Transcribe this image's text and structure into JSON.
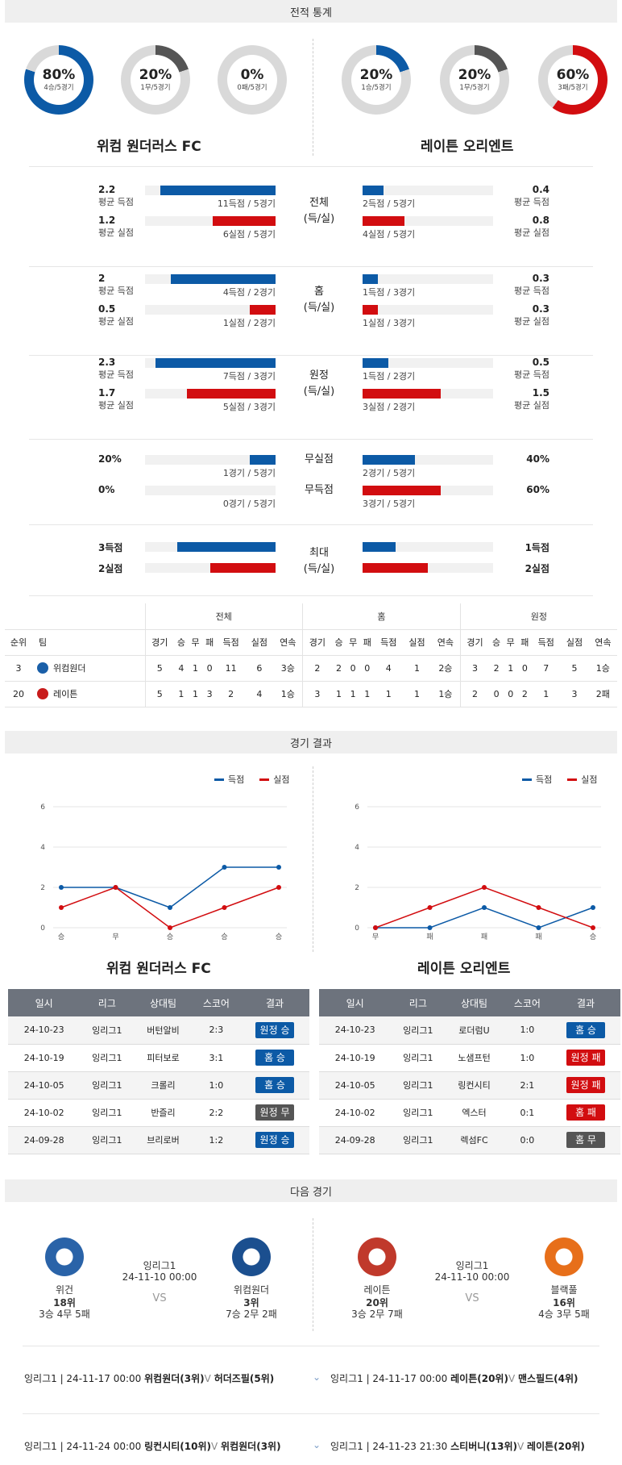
{
  "sections": {
    "stats": "전적 통계",
    "results": "경기 결과",
    "next": "다음 경기"
  },
  "donuts": [
    {
      "pct": "80%",
      "sub": "4승/5경기",
      "value": 0.8,
      "color": "#0c5aa6"
    },
    {
      "pct": "20%",
      "sub": "1무/5경기",
      "value": 0.2,
      "color": "#555555"
    },
    {
      "pct": "0%",
      "sub": "0패/5경기",
      "value": 0.0,
      "color": "#d20d10"
    },
    {
      "pct": "20%",
      "sub": "1승/5경기",
      "value": 0.2,
      "color": "#0c5aa6"
    },
    {
      "pct": "20%",
      "sub": "1무/5경기",
      "value": 0.2,
      "color": "#555555"
    },
    {
      "pct": "60%",
      "sub": "3패/5경기",
      "value": 0.6,
      "color": "#d20d10"
    }
  ],
  "teams": {
    "home": "위컴 원더러스 FC",
    "away": "레이튼 오리엔트"
  },
  "stat_groups": [
    {
      "center": [
        "전체",
        "(득/실)"
      ],
      "rows": [
        {
          "lv": "2.2",
          "ll": "평균 득점",
          "lcap": "11득점 / 5경기",
          "lw": 0.88,
          "rv": "0.4",
          "rl": "평균 득점",
          "rcap": "2득점 / 5경기",
          "rw": 0.16,
          "color": "blue"
        },
        {
          "lv": "1.2",
          "ll": "평균 실점",
          "lcap": "6실점 / 5경기",
          "lw": 0.48,
          "rv": "0.8",
          "rl": "평균 실점",
          "rcap": "4실점 / 5경기",
          "rw": 0.32,
          "color": "red"
        }
      ]
    },
    {
      "center": [
        "홈",
        "(득/실)"
      ],
      "rows": [
        {
          "lv": "2",
          "ll": "평균 득점",
          "lcap": "4득점 / 2경기",
          "lw": 0.8,
          "rv": "0.3",
          "rl": "평균 득점",
          "rcap": "1득점 / 3경기",
          "rw": 0.12,
          "color": "blue"
        },
        {
          "lv": "0.5",
          "ll": "평균 실점",
          "lcap": "1실점 / 2경기",
          "lw": 0.2,
          "rv": "0.3",
          "rl": "평균 실점",
          "rcap": "1실점 / 3경기",
          "rw": 0.12,
          "color": "red"
        }
      ]
    },
    {
      "center": [
        "원정",
        "(득/실)"
      ],
      "rows": [
        {
          "lv": "2.3",
          "ll": "평균 득점",
          "lcap": "7득점 / 3경기",
          "lw": 0.92,
          "rv": "0.5",
          "rl": "평균 득점",
          "rcap": "1득점 / 2경기",
          "rw": 0.2,
          "color": "blue"
        },
        {
          "lv": "1.7",
          "ll": "평균 실점",
          "lcap": "5실점 / 3경기",
          "lw": 0.68,
          "rv": "1.5",
          "rl": "평균 실점",
          "rcap": "3실점 / 2경기",
          "rw": 0.6,
          "color": "red"
        }
      ]
    }
  ],
  "clean": {
    "rows": [
      {
        "center": "무실점",
        "lv": "20%",
        "lcap": "1경기 / 5경기",
        "lw": 0.2,
        "rv": "40%",
        "rcap": "2경기 / 5경기",
        "rw": 0.4,
        "color": "blue"
      },
      {
        "center": "무득점",
        "lv": "0%",
        "lcap": "0경기 / 5경기",
        "lw": 0.0,
        "rv": "60%",
        "rcap": "3경기 / 5경기",
        "rw": 0.6,
        "color": "red"
      }
    ]
  },
  "max": {
    "center": [
      "최대",
      "(득/실)"
    ],
    "rows": [
      {
        "lv": "3득점",
        "lw": 0.75,
        "rv": "1득점",
        "rw": 0.25,
        "color": "blue"
      },
      {
        "lv": "2실점",
        "lw": 0.5,
        "rv": "2실점",
        "rw": 0.5,
        "color": "red"
      }
    ]
  },
  "standings": {
    "groups": [
      "전체",
      "홈",
      "원정"
    ],
    "cols": [
      "순위",
      "팀",
      "경기",
      "승",
      "무",
      "패",
      "득점",
      "실점",
      "연속",
      "경기",
      "승",
      "무",
      "패",
      "득점",
      "실점",
      "연속",
      "경기",
      "승",
      "무",
      "패",
      "득점",
      "실점",
      "연속"
    ],
    "rows": [
      {
        "rank": "3",
        "team": "위컴원더",
        "color": "#1a5fa8",
        "cells": [
          "5",
          "4",
          "1",
          "0",
          "11",
          "6",
          "3승",
          "2",
          "2",
          "0",
          "0",
          "4",
          "1",
          "2승",
          "3",
          "2",
          "1",
          "0",
          "7",
          "5",
          "1승"
        ]
      },
      {
        "rank": "20",
        "team": "레이튼",
        "color": "#c81b1b",
        "cells": [
          "5",
          "1",
          "1",
          "3",
          "2",
          "4",
          "1승",
          "3",
          "1",
          "1",
          "1",
          "1",
          "1",
          "1승",
          "2",
          "0",
          "0",
          "2",
          "1",
          "3",
          "2패"
        ]
      }
    ]
  },
  "legend": {
    "scored": "득점",
    "conceded": "실점"
  },
  "chart_data": [
    {
      "type": "line",
      "x": [
        "승",
        "무",
        "승",
        "승",
        "승"
      ],
      "yticks": [
        "0",
        "2",
        "4",
        "6"
      ],
      "ylim": [
        0,
        6
      ],
      "series": [
        {
          "name": "득점",
          "color": "#0c5aa6",
          "values": [
            2,
            2,
            1,
            3,
            3
          ]
        },
        {
          "name": "실점",
          "color": "#d20d10",
          "values": [
            1,
            2,
            0,
            1,
            2
          ]
        }
      ]
    },
    {
      "type": "line",
      "x": [
        "무",
        "패",
        "패",
        "패",
        "승"
      ],
      "yticks": [
        "0",
        "2",
        "4",
        "6"
      ],
      "ylim": [
        0,
        6
      ],
      "series": [
        {
          "name": "득점",
          "color": "#0c5aa6",
          "values": [
            0,
            0,
            1,
            0,
            1
          ]
        },
        {
          "name": "실점",
          "color": "#d20d10",
          "values": [
            0,
            1,
            2,
            1,
            0
          ]
        }
      ]
    }
  ],
  "results": {
    "headers": [
      "일시",
      "리그",
      "상대팀",
      "스코어",
      "결과"
    ],
    "home": [
      [
        "24-10-23",
        "잉리그1",
        "버턴알비",
        "2:3",
        "원정 승",
        "b-blue"
      ],
      [
        "24-10-19",
        "잉리그1",
        "피터보로",
        "3:1",
        "홈 승",
        "b-blue"
      ],
      [
        "24-10-05",
        "잉리그1",
        "크롤리",
        "1:0",
        "홈 승",
        "b-blue"
      ],
      [
        "24-10-02",
        "잉리그1",
        "반즐리",
        "2:2",
        "원정 무",
        "b-gray"
      ],
      [
        "24-09-28",
        "잉리그1",
        "브리로버",
        "1:2",
        "원정 승",
        "b-blue"
      ]
    ],
    "away": [
      [
        "24-10-23",
        "잉리그1",
        "로더럼U",
        "1:0",
        "홈 승",
        "b-blue"
      ],
      [
        "24-10-19",
        "잉리그1",
        "노샘프턴",
        "1:0",
        "원정 패",
        "b-red"
      ],
      [
        "24-10-05",
        "잉리그1",
        "링컨시티",
        "2:1",
        "원정 패",
        "b-red"
      ],
      [
        "24-10-02",
        "잉리그1",
        "엑스터",
        "0:1",
        "홈 패",
        "b-red"
      ],
      [
        "24-09-28",
        "잉리그1",
        "렉섬FC",
        "0:0",
        "홈 무",
        "b-gray"
      ]
    ]
  },
  "next": [
    {
      "league": "잉리그1",
      "time": "24-11-10 00:00",
      "vs": "VS",
      "t1": {
        "name": "위건",
        "rank": "18위",
        "rec": "3승 4무 5패"
      },
      "t2": {
        "name": "위컴원더",
        "rank": "3위",
        "rec": "7승 2무 2패"
      }
    },
    {
      "league": "잉리그1",
      "time": "24-11-10 00:00",
      "vs": "VS",
      "t1": {
        "name": "레이튼",
        "rank": "20위",
        "rec": "3승 2무 7패"
      },
      "t2": {
        "name": "블랙풀",
        "rank": "16위",
        "rec": "4승 3무 5패"
      }
    }
  ],
  "upcoming": {
    "left": [
      {
        "meta": "잉리그1 | 24-11-17 00:00",
        "a": "위컴원더(3위)",
        "v": "V",
        "b": "허더즈필(5위)"
      },
      {
        "meta": "잉리그1 | 24-11-24 00:00",
        "a": "링컨시티(10위)",
        "v": "V",
        "b": "위컴원더(3위)"
      }
    ],
    "right": [
      {
        "meta": "잉리그1 | 24-11-17 00:00",
        "a": "레이튼(20위)",
        "v": "V",
        "b": "맨스필드(4위)"
      },
      {
        "meta": "잉리그1 | 24-11-23 21:30",
        "a": "스티버니(13위)",
        "v": "V",
        "b": "레이튼(20위)"
      }
    ]
  }
}
